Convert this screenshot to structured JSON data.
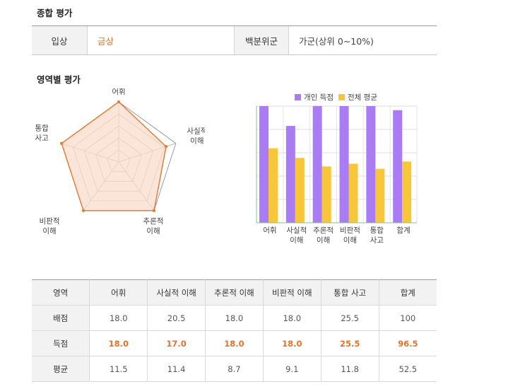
{
  "summary": {
    "title": "종합 평가",
    "award_label": "입상",
    "award_value": "금상",
    "percentile_label": "백분위군",
    "percentile_value": "가군(상위 0~10%)"
  },
  "area": {
    "title": "영역별 평가"
  },
  "colors": {
    "accent": "#e0742c",
    "radar_fill": "#f9dccb",
    "radar_stroke": "#e07e3c",
    "personal": "#a97cf5",
    "average": "#f8c63a",
    "header_bg": "#f2f2f2"
  },
  "chart_data": [
    {
      "type": "radar",
      "axes": [
        "어휘",
        "사실적\n이해",
        "추론적\n이해",
        "비판적\n이해",
        "통합\n사고"
      ],
      "max": [
        18.0,
        20.5,
        18.0,
        18.0,
        25.5
      ],
      "values": [
        18.0,
        17.0,
        18.0,
        18.0,
        25.5
      ],
      "ring_count": 5
    },
    {
      "type": "bar",
      "categories": [
        "어휘",
        "사실적\n이해",
        "추론적\n이해",
        "비판적\n이해",
        "통합\n사고",
        "합계"
      ],
      "series": [
        {
          "name": "개인 득점",
          "values": [
            100,
            83,
            100,
            100,
            100,
            96.5
          ]
        },
        {
          "name": "전체 평균",
          "values": [
            63.9,
            55.6,
            48.3,
            50.6,
            46.3,
            52.5
          ]
        }
      ],
      "ylim": [
        0,
        100
      ],
      "legend": "top-center",
      "grid": true
    }
  ],
  "table": {
    "headers": [
      "영역",
      "어휘",
      "사실적 이해",
      "추론적 이해",
      "비판적 이해",
      "통합 사고",
      "합계"
    ],
    "rows": [
      {
        "label": "배점",
        "cells": [
          "18.0",
          "20.5",
          "18.0",
          "18.0",
          "25.5",
          "100"
        ],
        "highlight": false
      },
      {
        "label": "득점",
        "cells": [
          "18.0",
          "17.0",
          "18.0",
          "18.0",
          "25.5",
          "96.5"
        ],
        "highlight": true
      },
      {
        "label": "평균",
        "cells": [
          "11.5",
          "11.4",
          "8.7",
          "9.1",
          "11.8",
          "52.5"
        ],
        "highlight": false
      }
    ]
  }
}
